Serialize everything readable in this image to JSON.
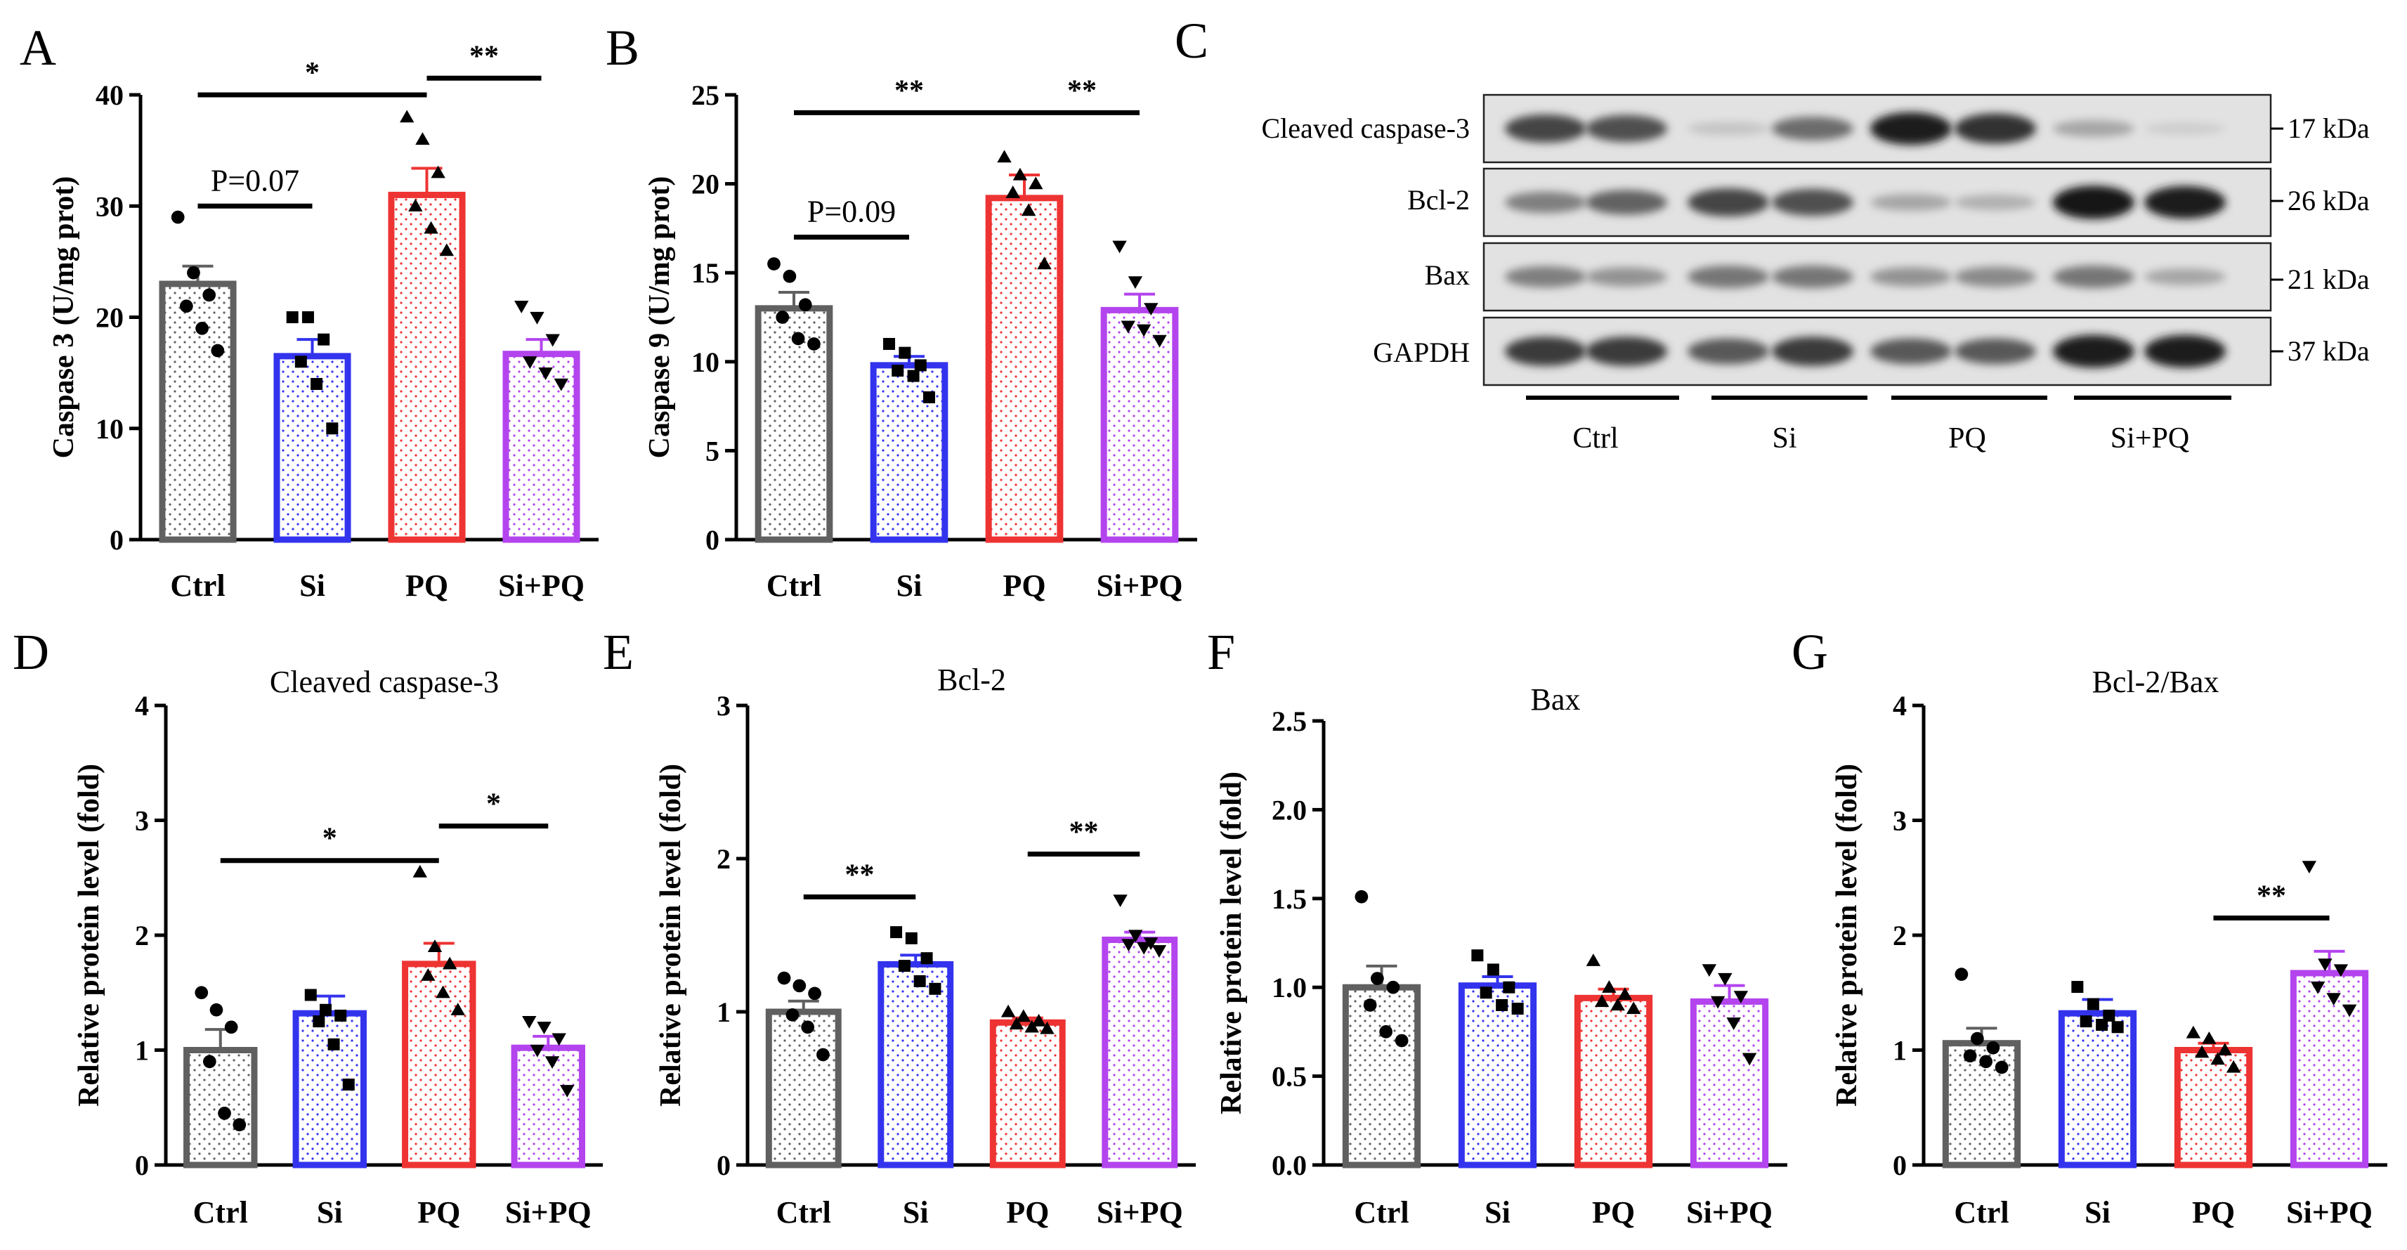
{
  "figure": {
    "panel_letters": [
      "A",
      "B",
      "C",
      "D",
      "E",
      "F",
      "G"
    ]
  },
  "colors": {
    "ctrl": "#606060",
    "si": "#3333ee",
    "pq": "#ee3333",
    "sipq": "#b344ee",
    "axis": "#000000"
  },
  "blot": {
    "rows": [
      {
        "label": "Cleaved caspase-3",
        "kda": "17 kDa"
      },
      {
        "label": "Bcl-2",
        "kda": "26 kDa"
      },
      {
        "label": "Bax",
        "kda": "21 kDa"
      },
      {
        "label": "GAPDH",
        "kda": "37 kDa"
      }
    ],
    "groups": [
      "Ctrl",
      "Si",
      "PQ",
      "Si+PQ"
    ],
    "intensity": [
      [
        0.75,
        0.7,
        0.1,
        0.55,
        0.95,
        0.85,
        0.25,
        0.05
      ],
      [
        0.45,
        0.6,
        0.75,
        0.7,
        0.25,
        0.2,
        0.98,
        0.95
      ],
      [
        0.45,
        0.35,
        0.5,
        0.5,
        0.35,
        0.4,
        0.5,
        0.25
      ],
      [
        0.8,
        0.8,
        0.65,
        0.8,
        0.65,
        0.65,
        0.95,
        0.95
      ]
    ]
  },
  "chart_data": [
    {
      "id": "A",
      "type": "bar",
      "title": "",
      "categories": [
        "Ctrl",
        "Si",
        "PQ",
        "Si+PQ"
      ],
      "values": [
        23,
        16.5,
        31,
        16.7
      ],
      "errors": [
        1.6,
        1.5,
        2.4,
        1.3
      ],
      "points": [
        [
          29,
          24,
          22,
          21,
          19,
          17
        ],
        [
          20,
          20,
          18,
          16,
          14,
          10
        ],
        [
          38,
          36,
          33,
          30,
          28,
          26
        ],
        [
          21,
          20,
          18,
          16,
          15,
          14
        ]
      ],
      "markers": [
        "circle",
        "square",
        "triangle",
        "triangle-down"
      ],
      "ylabel": "Caspase 3 (U/mg prot)",
      "ylim": [
        0,
        40
      ],
      "yticks": [
        "0",
        "10",
        "20",
        "30",
        "40"
      ],
      "significance": [
        {
          "i": 0,
          "j": 1,
          "y": 30,
          "label": "P=0.07"
        },
        {
          "i": 0,
          "j": 2,
          "y": 40,
          "label": "*"
        },
        {
          "i": 2,
          "j": 3,
          "y": 41.5,
          "label": "**"
        }
      ]
    },
    {
      "id": "B",
      "type": "bar",
      "title": "",
      "categories": [
        "Ctrl",
        "Si",
        "PQ",
        "Si+PQ"
      ],
      "values": [
        13,
        9.8,
        19.2,
        12.9
      ],
      "errors": [
        0.9,
        0.5,
        1.3,
        0.9
      ],
      "points": [
        [
          15.5,
          14.8,
          13.2,
          12.5,
          11.3,
          11
        ],
        [
          11,
          10.5,
          9.8,
          9.5,
          9.2,
          8
        ],
        [
          21.5,
          20.5,
          20,
          19.5,
          18.5,
          15.5
        ],
        [
          16.5,
          14.5,
          13,
          12,
          11.8,
          11.2
        ]
      ],
      "markers": [
        "circle",
        "square",
        "triangle",
        "triangle-down"
      ],
      "ylabel": "Caspase 9 (U/mg prot)",
      "ylim": [
        0,
        25
      ],
      "yticks": [
        "0",
        "5",
        "10",
        "15",
        "20",
        "25"
      ],
      "significance": [
        {
          "i": 0,
          "j": 1,
          "y": 17,
          "label": "P=0.09"
        },
        {
          "i": 0,
          "j": 2,
          "y": 24,
          "label": "**"
        },
        {
          "i": 2,
          "j": 3,
          "y": 24,
          "label": "**"
        }
      ]
    },
    {
      "id": "D",
      "type": "bar",
      "title": "Cleaved caspase-3",
      "categories": [
        "Ctrl",
        "Si",
        "PQ",
        "Si+PQ"
      ],
      "values": [
        1.0,
        1.32,
        1.75,
        1.02
      ],
      "errors": [
        0.18,
        0.15,
        0.18,
        0.1
      ],
      "points": [
        [
          1.5,
          1.35,
          1.2,
          0.9,
          0.45,
          0.35
        ],
        [
          1.48,
          1.35,
          1.3,
          1.25,
          1.05,
          0.7
        ],
        [
          2.55,
          1.9,
          1.75,
          1.65,
          1.5,
          1.35
        ],
        [
          1.25,
          1.2,
          1.1,
          1.0,
          0.9,
          0.65
        ]
      ],
      "markers": [
        "circle",
        "square",
        "triangle",
        "triangle-down"
      ],
      "ylabel": "Relative protein level (fold)",
      "ylim": [
        0,
        4
      ],
      "yticks": [
        "0",
        "1",
        "2",
        "3",
        "4"
      ],
      "significance": [
        {
          "i": 0,
          "j": 2,
          "y": 2.65,
          "label": "*"
        },
        {
          "i": 2,
          "j": 3,
          "y": 2.95,
          "label": "*"
        }
      ]
    },
    {
      "id": "E",
      "type": "bar",
      "title": "Bcl-2",
      "categories": [
        "Ctrl",
        "Si",
        "PQ",
        "Si+PQ"
      ],
      "values": [
        1.0,
        1.31,
        0.93,
        1.47
      ],
      "errors": [
        0.07,
        0.06,
        0.03,
        0.05
      ],
      "points": [
        [
          1.22,
          1.17,
          1.12,
          0.98,
          0.9,
          0.72
        ],
        [
          1.52,
          1.48,
          1.35,
          1.3,
          1.2,
          1.15
        ],
        [
          1.0,
          0.97,
          0.94,
          0.92,
          0.9,
          0.89
        ],
        [
          1.73,
          1.5,
          1.45,
          1.44,
          1.42,
          1.4
        ]
      ],
      "markers": [
        "circle",
        "square",
        "triangle",
        "triangle-down"
      ],
      "ylabel": "Relative protein level (fold)",
      "ylim": [
        0,
        3
      ],
      "yticks": [
        "0",
        "1",
        "2",
        "3"
      ],
      "significance": [
        {
          "i": 0,
          "j": 1,
          "y": 1.75,
          "label": "**"
        },
        {
          "i": 2,
          "j": 3,
          "y": 2.03,
          "label": "**"
        }
      ]
    },
    {
      "id": "F",
      "type": "bar",
      "title": "Bax",
      "categories": [
        "Ctrl",
        "Si",
        "PQ",
        "Si+PQ"
      ],
      "values": [
        1.0,
        1.01,
        0.94,
        0.92
      ],
      "errors": [
        0.12,
        0.05,
        0.05,
        0.09
      ],
      "points": [
        [
          1.51,
          1.05,
          1.0,
          0.9,
          0.75,
          0.7
        ],
        [
          1.18,
          1.1,
          1.0,
          0.97,
          0.9,
          0.88
        ],
        [
          1.15,
          1.0,
          0.96,
          0.92,
          0.9,
          0.88
        ],
        [
          1.1,
          1.05,
          0.95,
          0.92,
          0.8,
          0.6
        ]
      ],
      "markers": [
        "circle",
        "square",
        "triangle",
        "triangle-down"
      ],
      "ylabel": "Relative protein level (fold)",
      "ylim": [
        0,
        2.5
      ],
      "yticks": [
        "0.0",
        "0.5",
        "1.0",
        "1.5",
        "2.0",
        "2.5"
      ],
      "significance": []
    },
    {
      "id": "G",
      "type": "bar",
      "title": "Bcl-2/Bax",
      "categories": [
        "Ctrl",
        "Si",
        "PQ",
        "Si+PQ"
      ],
      "values": [
        1.06,
        1.32,
        1.0,
        1.67
      ],
      "errors": [
        0.13,
        0.12,
        0.06,
        0.19
      ],
      "points": [
        [
          1.66,
          1.1,
          1.02,
          0.95,
          0.9,
          0.85
        ],
        [
          1.55,
          1.4,
          1.3,
          1.25,
          1.22,
          1.2
        ],
        [
          1.15,
          1.1,
          1.0,
          0.98,
          0.92,
          0.85
        ],
        [
          2.6,
          1.75,
          1.7,
          1.55,
          1.45,
          1.35
        ]
      ],
      "markers": [
        "circle",
        "square",
        "triangle",
        "triangle-down"
      ],
      "ylabel": "Relative protein level (fold)",
      "ylim": [
        0,
        4
      ],
      "yticks": [
        "0",
        "1",
        "2",
        "3",
        "4"
      ],
      "significance": [
        {
          "i": 2,
          "j": 3,
          "y": 2.15,
          "label": "**"
        }
      ]
    }
  ]
}
